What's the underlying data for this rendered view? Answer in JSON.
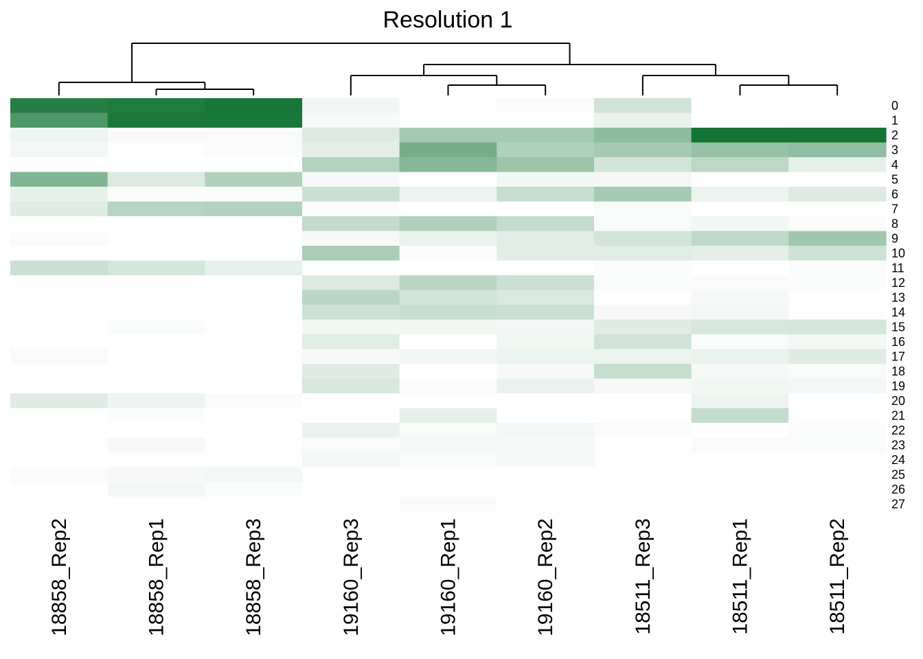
{
  "chart_data": {
    "type": "heatmap",
    "title": "Resolution 1",
    "columns": [
      "18858_Rep2",
      "18858_Rep1",
      "18858_Rep3",
      "19160_Rep3",
      "19160_Rep1",
      "19160_Rep2",
      "18511_Rep3",
      "18511_Rep1",
      "18511_Rep2"
    ],
    "rows": [
      "0",
      "1",
      "2",
      "3",
      "4",
      "5",
      "6",
      "7",
      "8",
      "9",
      "10",
      "11",
      "12",
      "13",
      "14",
      "15",
      "16",
      "17",
      "18",
      "19",
      "20",
      "21",
      "22",
      "23",
      "24",
      "25",
      "26",
      "27"
    ],
    "values": [
      [
        0.92,
        0.95,
        0.98,
        0.06,
        0.0,
        0.02,
        0.2,
        0.01,
        0.01
      ],
      [
        0.75,
        0.97,
        0.97,
        0.03,
        0.0,
        0.01,
        0.09,
        0.0,
        0.01
      ],
      [
        0.07,
        0.03,
        0.03,
        0.15,
        0.38,
        0.38,
        0.48,
        1.0,
        1.0
      ],
      [
        0.05,
        0.01,
        0.02,
        0.12,
        0.58,
        0.34,
        0.38,
        0.44,
        0.47
      ],
      [
        0.0,
        0.0,
        0.0,
        0.32,
        0.52,
        0.42,
        0.19,
        0.28,
        0.11
      ],
      [
        0.53,
        0.15,
        0.33,
        0.04,
        0.0,
        0.06,
        0.05,
        0.01,
        0.01
      ],
      [
        0.1,
        0.02,
        0.02,
        0.22,
        0.08,
        0.24,
        0.38,
        0.08,
        0.15
      ],
      [
        0.14,
        0.31,
        0.32,
        0.02,
        0.0,
        0.0,
        0.03,
        0.0,
        0.01
      ],
      [
        0.0,
        0.0,
        0.0,
        0.26,
        0.33,
        0.25,
        0.03,
        0.06,
        0.02
      ],
      [
        0.02,
        0.01,
        0.0,
        0.04,
        0.09,
        0.13,
        0.19,
        0.27,
        0.4
      ],
      [
        0.0,
        0.0,
        0.0,
        0.36,
        0.02,
        0.13,
        0.13,
        0.12,
        0.21
      ],
      [
        0.22,
        0.18,
        0.1,
        0.01,
        0.0,
        0.01,
        0.02,
        0.0,
        0.02
      ],
      [
        0.0,
        0.01,
        0.0,
        0.15,
        0.29,
        0.22,
        0.02,
        0.03,
        0.02
      ],
      [
        0.0,
        0.0,
        0.0,
        0.29,
        0.19,
        0.16,
        0.01,
        0.04,
        0.01
      ],
      [
        0.0,
        0.0,
        0.0,
        0.21,
        0.24,
        0.22,
        0.04,
        0.05,
        0.01
      ],
      [
        0.01,
        0.02,
        0.01,
        0.06,
        0.06,
        0.05,
        0.14,
        0.17,
        0.18
      ],
      [
        0.01,
        0.0,
        0.01,
        0.13,
        0.0,
        0.06,
        0.2,
        0.03,
        0.05
      ],
      [
        0.03,
        0.0,
        0.01,
        0.04,
        0.06,
        0.08,
        0.08,
        0.09,
        0.14
      ],
      [
        0.0,
        0.0,
        0.0,
        0.14,
        0.0,
        0.04,
        0.24,
        0.04,
        0.03
      ],
      [
        0.0,
        0.01,
        0.0,
        0.17,
        0.02,
        0.09,
        0.04,
        0.06,
        0.05
      ],
      [
        0.14,
        0.07,
        0.02,
        0.0,
        0.0,
        0.0,
        0.0,
        0.07,
        0.0
      ],
      [
        0.0,
        0.02,
        0.0,
        0.0,
        0.11,
        0.0,
        0.0,
        0.25,
        0.0
      ],
      [
        0.01,
        0.0,
        0.0,
        0.09,
        0.03,
        0.05,
        0.02,
        0.01,
        0.02
      ],
      [
        0.01,
        0.04,
        0.01,
        0.03,
        0.04,
        0.04,
        0.01,
        0.03,
        0.02
      ],
      [
        0.0,
        0.01,
        0.01,
        0.05,
        0.03,
        0.04,
        0.01,
        0.01,
        0.01
      ],
      [
        0.02,
        0.04,
        0.05,
        0.0,
        0.0,
        0.0,
        0.01,
        0.0,
        0.0
      ],
      [
        0.01,
        0.05,
        0.02,
        0.0,
        0.0,
        0.0,
        0.0,
        0.0,
        0.0
      ],
      [
        0.0,
        0.0,
        0.0,
        0.01,
        0.03,
        0.01,
        0.0,
        0.0,
        0.0
      ]
    ],
    "color_low": "#ffffff",
    "color_high": "#137434",
    "legend": "none",
    "column_dendrogram": true,
    "row_dendrogram": false
  }
}
